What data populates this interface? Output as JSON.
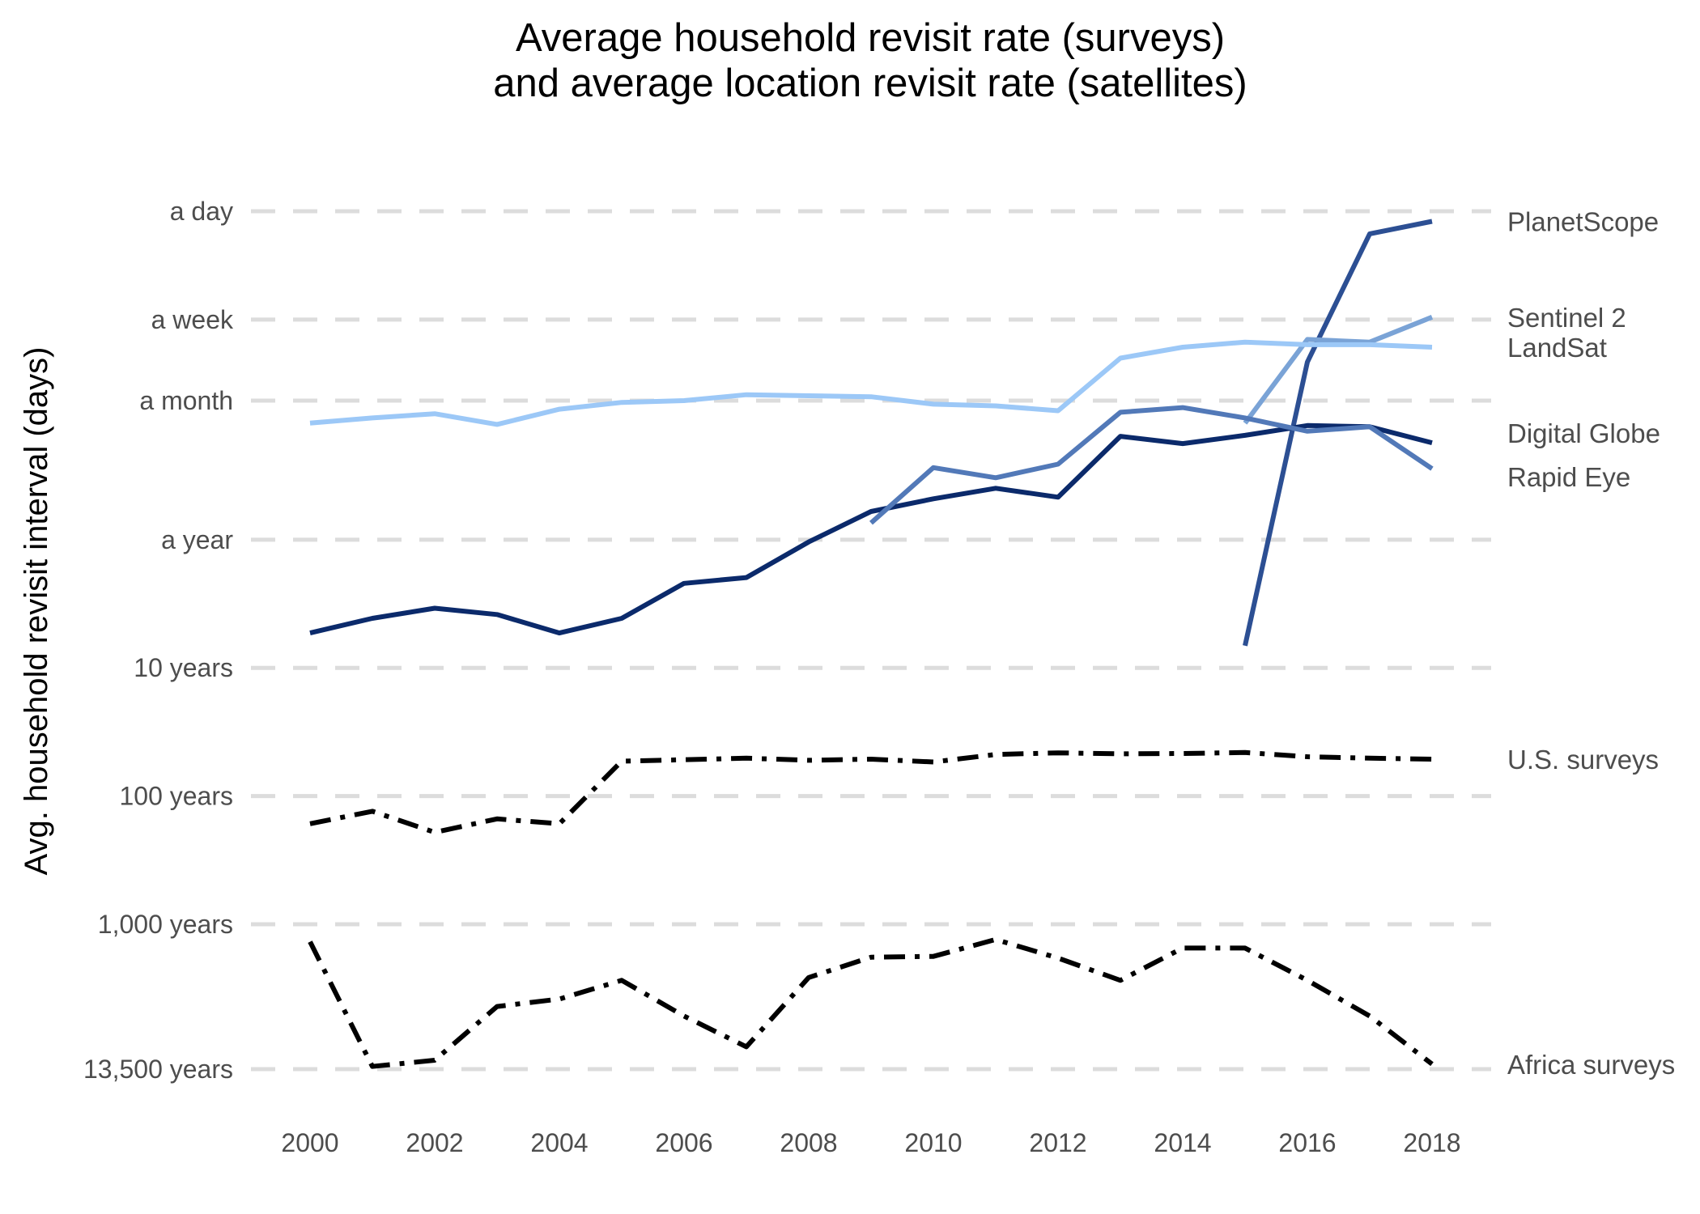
{
  "chart_data": {
    "type": "line",
    "title": "Average household revisit rate (surveys)",
    "subtitle": "and average location revisit rate (satellites)",
    "xlabel": "",
    "ylabel": "Avg. household revisit interval (days)",
    "y_scale": "reciprocal-log",
    "y_unit": "days",
    "xlim": [
      2000,
      2018
    ],
    "ylim_days": [
      4927500,
      1
    ],
    "x_ticks": [
      2000,
      2002,
      2004,
      2006,
      2008,
      2010,
      2012,
      2014,
      2016,
      2018
    ],
    "y_ticks": [
      {
        "label": "a day",
        "days": 1
      },
      {
        "label": "a week",
        "days": 7
      },
      {
        "label": "a month",
        "days": 30
      },
      {
        "label": "a year",
        "days": 365
      },
      {
        "label": "10 years",
        "days": 3650
      },
      {
        "label": "100 years",
        "days": 36500
      },
      {
        "label": "1,000 years",
        "days": 365000
      },
      {
        "label": "13,500 years",
        "days": 4927500
      }
    ],
    "grid": "horizontal dashed",
    "legend": "direct labels at right",
    "series": [
      {
        "name": "PlanetScope",
        "color": "#2c4f93",
        "dash": "solid",
        "x": [
          2015,
          2016,
          2017,
          2018
        ],
        "days": [
          2450,
          15,
          1.5,
          1.2
        ]
      },
      {
        "name": "Sentinel 2",
        "color": "#7aa3d6",
        "dash": "solid",
        "x": [
          2015,
          2016,
          2017,
          2018
        ],
        "days": [
          45,
          10,
          10.5,
          6.7
        ]
      },
      {
        "name": "LandSat",
        "color": "#9cc8f7",
        "dash": "solid",
        "x": [
          2000,
          2001,
          2002,
          2003,
          2004,
          2005,
          2006,
          2007,
          2008,
          2009,
          2010,
          2011,
          2012,
          2013,
          2014,
          2015,
          2016,
          2017,
          2018
        ],
        "days": [
          45,
          41,
          38,
          46,
          35,
          31,
          30,
          27,
          27.5,
          28,
          32,
          33,
          36,
          14,
          11.5,
          10.5,
          11,
          11,
          11.5
        ]
      },
      {
        "name": "Digital Globe",
        "color": "#0b2a6b",
        "dash": "solid",
        "x": [
          2000,
          2001,
          2002,
          2003,
          2004,
          2005,
          2006,
          2007,
          2008,
          2009,
          2010,
          2011,
          2012,
          2013,
          2014,
          2015,
          2016,
          2017,
          2018
        ],
        "days": [
          1950,
          1500,
          1250,
          1400,
          1950,
          1500,
          800,
          720,
          380,
          220,
          175,
          145,
          170,
          57,
          65,
          56,
          47,
          48,
          64
        ]
      },
      {
        "name": "Rapid Eye",
        "color": "#5279b8",
        "dash": "solid",
        "x": [
          2009,
          2010,
          2011,
          2012,
          2013,
          2014,
          2015,
          2016,
          2017,
          2018
        ],
        "days": [
          270,
          100,
          120,
          94,
          37,
          34,
          41,
          52,
          48,
          102
        ]
      },
      {
        "name": "U.S. surveys",
        "color": "#000000",
        "dash": "dot-dash",
        "x": [
          2000,
          2001,
          2002,
          2003,
          2004,
          2005,
          2006,
          2007,
          2008,
          2009,
          2010,
          2011,
          2012,
          2013,
          2014,
          2015,
          2016,
          2017,
          2018
        ],
        "days": [
          60000,
          48000,
          70000,
          55000,
          60000,
          19500,
          19000,
          18500,
          19200,
          18800,
          19800,
          17300,
          16800,
          17100,
          17000,
          16700,
          18000,
          18500,
          18800
        ]
      },
      {
        "name": "Africa surveys",
        "color": "#000000",
        "dash": "dot-dash",
        "x": [
          2000,
          2001,
          2002,
          2003,
          2004,
          2005,
          2006,
          2007,
          2008,
          2009,
          2010,
          2011,
          2012,
          2013,
          2014,
          2015,
          2016,
          2017,
          2018
        ],
        "days": [
          500000,
          4700000,
          4200000,
          1600000,
          1400000,
          1000000,
          1900000,
          3300000,
          950000,
          660000,
          650000,
          480000,
          670000,
          1000000,
          560000,
          560000,
          1000000,
          1900000,
          4500000
        ]
      }
    ]
  }
}
